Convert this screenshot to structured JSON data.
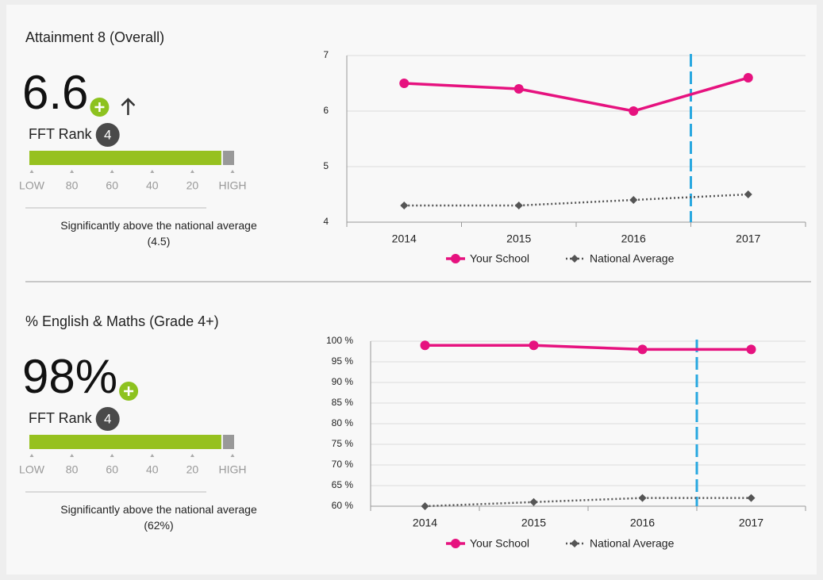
{
  "panels": [
    {
      "title": "Attainment 8 (Overall)",
      "value": "6.6",
      "rank_label": "FFT Rank",
      "rank": 4,
      "scale_ticks": [
        {
          "value": 100,
          "label": "LOW"
        },
        80,
        60,
        40,
        20,
        {
          "value": 0,
          "label": "HIGH"
        }
      ],
      "description": "Significantly above the national average (4.5)"
    },
    {
      "title": "% English & Maths (Grade 4+)",
      "value": "98%",
      "rank_label": "FFT Rank",
      "rank": 4,
      "scale_ticks": [
        {
          "value": 100,
          "label": "LOW"
        },
        80,
        60,
        40,
        20,
        {
          "value": 0,
          "label": "HIGH"
        }
      ],
      "description": "Significantly above the national average (62%)"
    }
  ],
  "chart_data": [
    {
      "type": "line",
      "categories": [
        "2014",
        "2015",
        "2016",
        "2017"
      ],
      "series": [
        {
          "name": "Your School",
          "color": "#e6127f",
          "values": [
            6.5,
            6.4,
            6.0,
            6.6
          ]
        },
        {
          "name": "National Average",
          "color": "#555555",
          "values": [
            4.3,
            4.3,
            4.4,
            4.5
          ]
        }
      ],
      "ylim": [
        4,
        7
      ],
      "yticks": [
        4,
        5,
        6,
        7
      ],
      "grid": true,
      "legend": "bottom"
    },
    {
      "type": "line",
      "categories": [
        "2014",
        "2015",
        "2016",
        "2017"
      ],
      "series": [
        {
          "name": "Your School",
          "color": "#e6127f",
          "values": [
            99,
            99,
            98,
            98
          ]
        },
        {
          "name": "National Average",
          "color": "#555555",
          "values": [
            60,
            61,
            62,
            62
          ]
        }
      ],
      "ylim": [
        60,
        100
      ],
      "yticks": [
        {
          "value": 60,
          "label": "60 %"
        },
        {
          "value": 65,
          "label": "65 %"
        },
        {
          "value": 70,
          "label": "70 %"
        },
        {
          "value": 75,
          "label": "75 %"
        },
        {
          "value": 80,
          "label": "80 %"
        },
        {
          "value": 85,
          "label": "85 %"
        },
        {
          "value": 90,
          "label": "90 %"
        },
        {
          "value": 95,
          "label": "95 %"
        },
        {
          "value": 100,
          "label": "100 %"
        }
      ],
      "grid": true,
      "legend": "bottom"
    }
  ]
}
